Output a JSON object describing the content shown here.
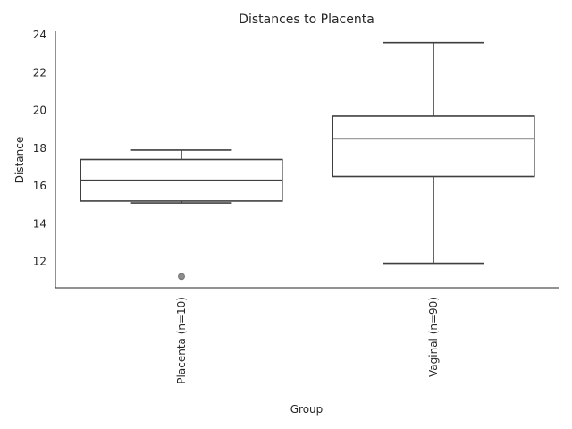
{
  "chart_data": {
    "type": "box",
    "title": "Distances to Placenta",
    "xlabel": "Group",
    "ylabel": "Distance",
    "ylim": [
      10.6,
      24.2
    ],
    "yticks": [
      12,
      14,
      16,
      18,
      20,
      22,
      24
    ],
    "grid": false,
    "categories": [
      "Placenta (n=10)",
      "Vaginal (n=90)"
    ],
    "boxes": [
      {
        "category": "Placenta (n=10)",
        "whislo": 15.1,
        "q1": 15.2,
        "median": 16.3,
        "q3": 17.4,
        "whishi": 17.9,
        "outliers": [
          11.2
        ]
      },
      {
        "category": "Vaginal (n=90)",
        "whislo": 11.9,
        "q1": 16.5,
        "median": 18.5,
        "q3": 19.7,
        "whishi": 23.6,
        "outliers": []
      }
    ]
  }
}
